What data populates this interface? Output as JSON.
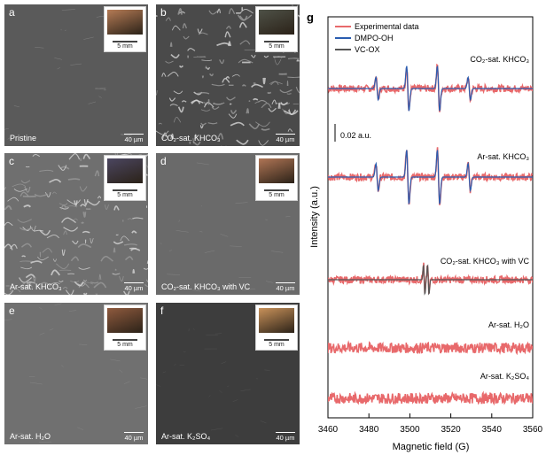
{
  "panels": [
    {
      "letter": "a",
      "condition": "Pristine",
      "scale": "40 µm",
      "inset_scale": "5 mm",
      "inset_color": "#b57b55"
    },
    {
      "letter": "b",
      "condition": "CO₂-sat. KHCO₃",
      "scale": "40 µm",
      "inset_scale": "5 mm",
      "inset_color": "#4e5147"
    },
    {
      "letter": "c",
      "condition": "Ar-sat. KHCO₃",
      "scale": "40 µm",
      "inset_scale": "5 mm",
      "inset_color": "#4b4660"
    },
    {
      "letter": "d",
      "condition": "CO₂-sat. KHCO₃ with VC",
      "scale": "40 µm",
      "inset_scale": "5 mm",
      "inset_color": "#b07555"
    },
    {
      "letter": "e",
      "condition": "Ar-sat. H₂O",
      "scale": "40 µm",
      "inset_scale": "5 mm",
      "inset_color": "#8f5a3e"
    },
    {
      "letter": "f",
      "condition": "Ar-sat. K₂SO₄",
      "scale": "40 µm",
      "inset_scale": "5 mm",
      "inset_color": "#c9925a"
    }
  ],
  "chart_data": {
    "type": "line",
    "panel_letter": "g",
    "xlabel": "Magnetic field (G)",
    "ylabel": "Intensity (a.u.)",
    "xlim": [
      3460,
      3560
    ],
    "xticks": [
      "3460",
      "3480",
      "3500",
      "3520",
      "3540",
      "3560"
    ],
    "scale_bar_label": "0.02 a.u.",
    "legend": [
      {
        "name": "Experimental data",
        "color": "#e8696b"
      },
      {
        "name": "DMPO-OH",
        "color": "#2a5db0"
      },
      {
        "name": "VC-OX",
        "color": "#555555"
      }
    ],
    "dmpo_oh_line_positions_G": [
      3484,
      3499,
      3514,
      3529
    ],
    "vc_ox_line_positions_G": [
      3507,
      3509
    ],
    "traces": [
      {
        "label": "CO₂-sat. KHCO₃",
        "type": "dmpo",
        "amplitude": 1.0
      },
      {
        "label": "Ar-sat. KHCO₃",
        "type": "dmpo",
        "amplitude": 1.2
      },
      {
        "label": "CO₂-sat. KHCO₃ with VC",
        "type": "vc",
        "amplitude": 0.9
      },
      {
        "label": "Ar-sat. H₂O",
        "type": "noise",
        "amplitude": 0.0
      },
      {
        "label": "Ar-sat. K₂SO₄",
        "type": "noise",
        "amplitude": 0.0
      }
    ]
  }
}
